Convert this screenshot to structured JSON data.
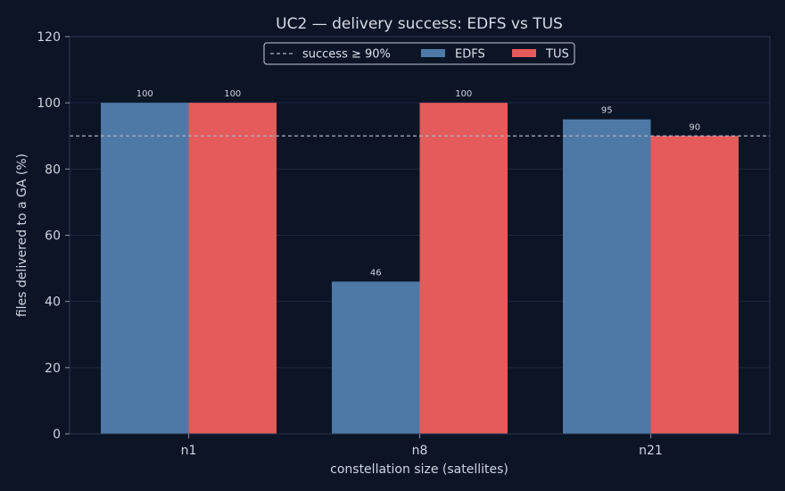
{
  "chart_data": {
    "type": "bar",
    "title": "UC2 — delivery success: EDFS vs TUS",
    "xlabel": "constellation size (satellites)",
    "ylabel": "files delivered to a GA (%)",
    "categories": [
      "n1",
      "n8",
      "n21"
    ],
    "series": [
      {
        "name": "EDFS",
        "values": [
          100,
          46,
          95
        ],
        "labels": [
          "100",
          "46",
          "95"
        ],
        "color": "#4e79a7"
      },
      {
        "name": "TUS",
        "values": [
          100,
          100,
          90
        ],
        "labels": [
          "100",
          "100",
          "90"
        ],
        "color": "#e55a5a"
      }
    ],
    "ylim": [
      0,
      120
    ],
    "yticks": [
      0,
      20,
      40,
      60,
      80,
      100,
      120
    ],
    "threshold": {
      "value": 90,
      "label": "success ≥ 90%",
      "color": "#aab3c2"
    },
    "grid": true,
    "legend": "top-center"
  }
}
